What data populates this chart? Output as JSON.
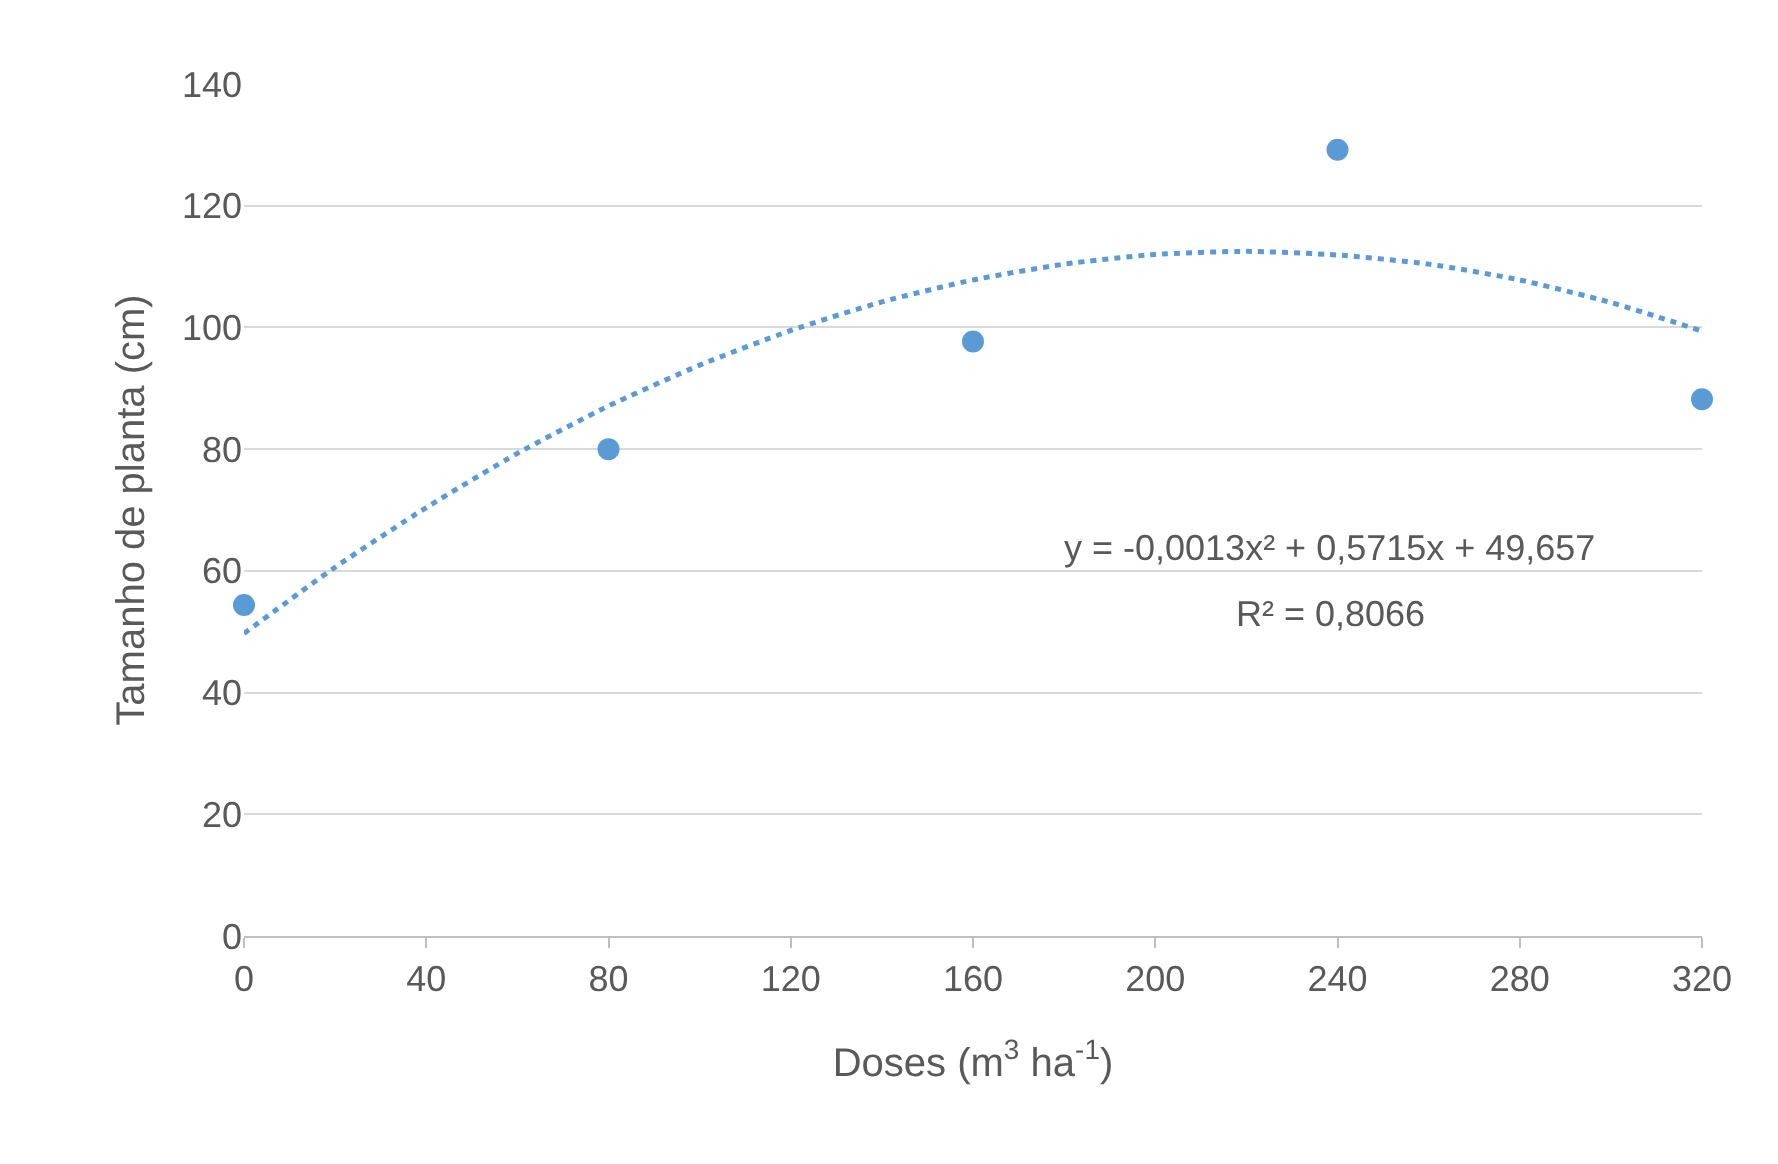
{
  "chart_data": {
    "type": "scatter",
    "xlabel": "Doses (m$^{3}$ ha$^{-1}$)",
    "ylabel": "Tamanho de planta (cm)",
    "xlim": [
      0,
      320
    ],
    "xticks": [
      0,
      40,
      80,
      120,
      160,
      200,
      240,
      280,
      320
    ],
    "ylim": [
      0,
      140
    ],
    "yticks": [
      0,
      20,
      40,
      60,
      80,
      100,
      120,
      140
    ],
    "grid": "y",
    "series": [
      {
        "marker": "circle",
        "color": "#5b9bd5",
        "x": [
          0,
          80,
          160,
          240,
          320
        ],
        "values": [
          54.4,
          80,
          97.7,
          129.2,
          88.2
        ]
      },
      {
        "type": "line",
        "marker": "none",
        "line_style": "dotted",
        "color": "#5b9bd5",
        "x": [
          0,
          20,
          40,
          60,
          80,
          100,
          120,
          140,
          160,
          180,
          200,
          220,
          240,
          260,
          280,
          300,
          320
        ],
        "values": [
          49.7,
          60.6,
          70.4,
          79.3,
          87.1,
          93.8,
          99.5,
          104.2,
          107.8,
          110.4,
          112.0,
          112.5,
          111.9,
          110.4,
          107.8,
          104.1,
          99.4
        ]
      }
    ],
    "annotations": [
      "y = -0,0013x² + 0,5715x + 49,657",
      "R² = 0,8066"
    ]
  }
}
